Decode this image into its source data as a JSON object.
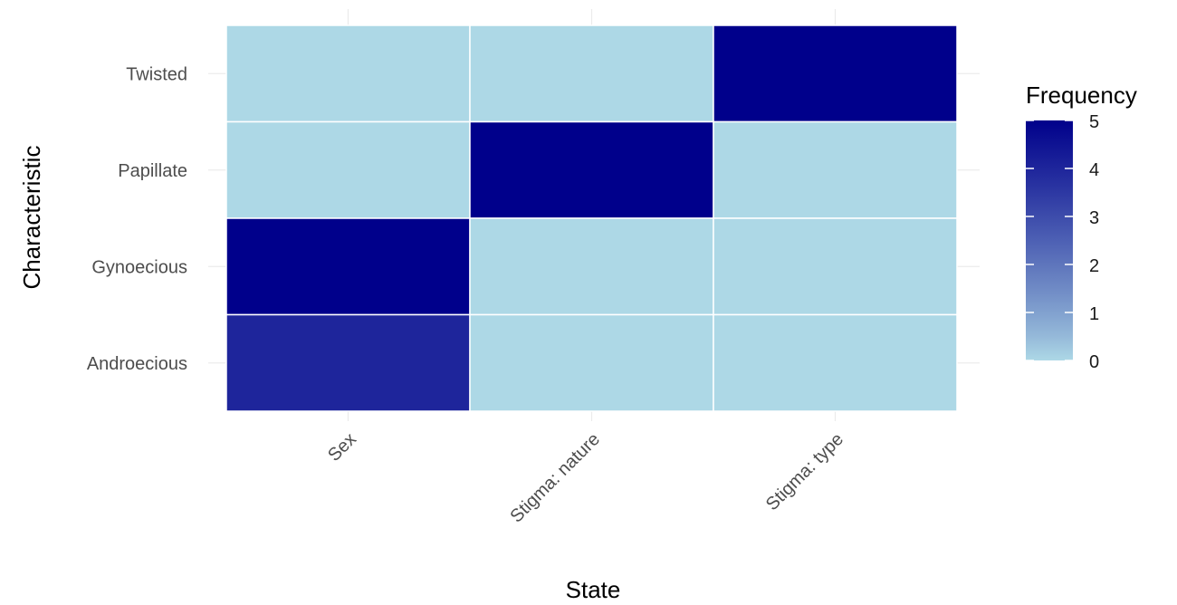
{
  "chart_data": {
    "type": "heatmap",
    "xlabel": "State",
    "ylabel": "Characteristic",
    "x_categories": [
      "Sex",
      "Stigma: nature",
      "Stigma: type"
    ],
    "y_categories": [
      "Androecious",
      "Gynoecious",
      "Papillate",
      "Twisted"
    ],
    "cells": [
      {
        "x": "Sex",
        "y": "Twisted",
        "value": 0
      },
      {
        "x": "Stigma: nature",
        "y": "Twisted",
        "value": 0
      },
      {
        "x": "Stigma: type",
        "y": "Twisted",
        "value": 5
      },
      {
        "x": "Sex",
        "y": "Papillate",
        "value": 0
      },
      {
        "x": "Stigma: nature",
        "y": "Papillate",
        "value": 5
      },
      {
        "x": "Stigma: type",
        "y": "Papillate",
        "value": 0
      },
      {
        "x": "Sex",
        "y": "Gynoecious",
        "value": 5
      },
      {
        "x": "Stigma: nature",
        "y": "Gynoecious",
        "value": 0
      },
      {
        "x": "Stigma: type",
        "y": "Gynoecious",
        "value": 0
      },
      {
        "x": "Sex",
        "y": "Androecious",
        "value": 4
      },
      {
        "x": "Stigma: nature",
        "y": "Androecious",
        "value": 0
      },
      {
        "x": "Stigma: type",
        "y": "Androecious",
        "value": 0
      }
    ],
    "legend": {
      "title": "Frequency",
      "ticks": [
        0,
        1,
        2,
        3,
        4,
        5
      ],
      "range": [
        0,
        5
      ],
      "low_color": "#add8e6",
      "high_color": "#00008b",
      "placement": "right"
    },
    "grid": true
  }
}
